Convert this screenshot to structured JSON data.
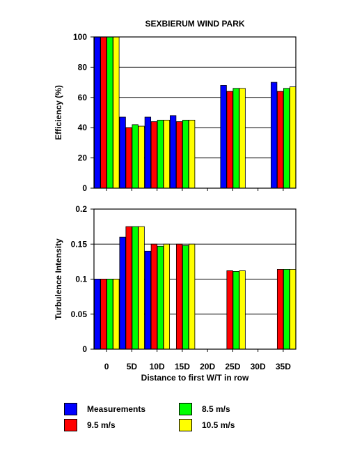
{
  "chart_data": [
    {
      "type": "bar",
      "title": "SEXBIERUM WIND PARK",
      "xlabel": "",
      "ylabel": "Efficiency (%)",
      "ylim": [
        0,
        100
      ],
      "yticks": [
        "0",
        "20",
        "40",
        "60",
        "80",
        "100"
      ],
      "categories": [
        "0",
        "5D",
        "10D",
        "15D",
        "20D",
        "25D",
        "30D",
        "35D"
      ],
      "grid": true,
      "series": [
        {
          "name": "Measurements",
          "color": "#0000ff",
          "values": [
            100,
            47,
            47,
            48,
            null,
            68,
            null,
            70
          ]
        },
        {
          "name": "8.5 m/s",
          "color": "#00ff00",
          "values": [
            100,
            42,
            45,
            45,
            null,
            66,
            null,
            66
          ]
        },
        {
          "name": "9.5 m/s",
          "color": "#ff0000",
          "values": [
            100,
            40,
            44,
            44,
            null,
            64,
            null,
            64
          ]
        },
        {
          "name": "10.5 m/s",
          "color": "#ffff00",
          "values": [
            100,
            41,
            45,
            45,
            null,
            66,
            null,
            67
          ]
        }
      ]
    },
    {
      "type": "bar",
      "title": "",
      "xlabel": "Distance to first W/T in row",
      "ylabel": "Turbulence Intensity",
      "ylim": [
        0,
        0.2
      ],
      "yticks": [
        "0",
        "0.05",
        "0.1",
        "0.15",
        "0.2"
      ],
      "categories": [
        "0",
        "5D",
        "10D",
        "15D",
        "20D",
        "25D",
        "30D",
        "35D"
      ],
      "grid": true,
      "series": [
        {
          "name": "Measurements",
          "color": "#0000ff",
          "values": [
            0.1,
            0.16,
            0.14,
            null,
            null,
            null,
            null,
            null
          ]
        },
        {
          "name": "8.5 m/s",
          "color": "#00ff00",
          "values": [
            0.1,
            0.175,
            0.147,
            0.148,
            null,
            0.111,
            null,
            0.114
          ]
        },
        {
          "name": "9.5 m/s",
          "color": "#ff0000",
          "values": [
            0.1,
            0.175,
            0.15,
            0.15,
            null,
            0.112,
            null,
            0.114
          ]
        },
        {
          "name": "10.5 m/s",
          "color": "#ffff00",
          "values": [
            0.1,
            0.175,
            0.15,
            0.15,
            null,
            0.112,
            null,
            0.114
          ]
        }
      ]
    }
  ],
  "legend": [
    {
      "label": "Measurements",
      "color": "#0000ff"
    },
    {
      "label": "8.5 m/s",
      "color": "#00ff00"
    },
    {
      "label": "9.5 m/s",
      "color": "#ff0000"
    },
    {
      "label": "10.5 m/s",
      "color": "#ffff00"
    }
  ]
}
